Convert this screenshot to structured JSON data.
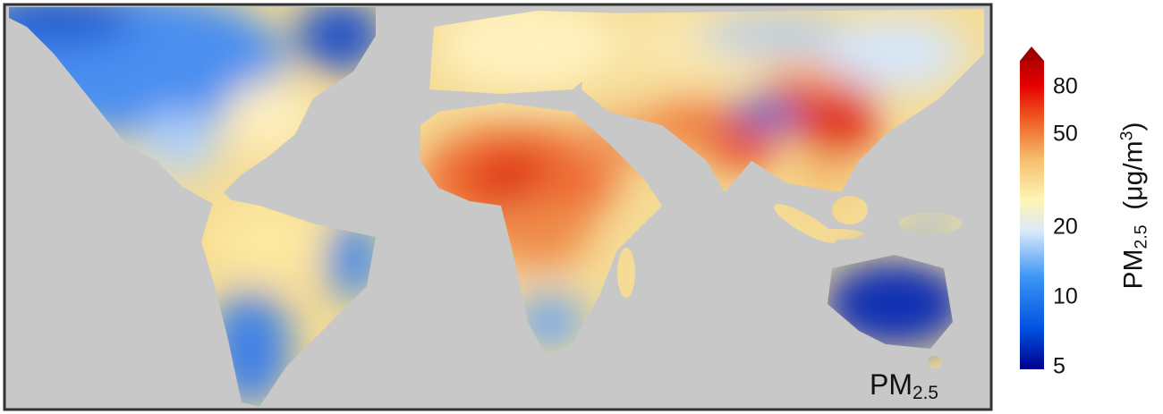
{
  "map": {
    "label": "PM",
    "label_sub": "2.5",
    "background_color": "#c8c8c8",
    "variable": "PM2.5 concentration"
  },
  "colorbar": {
    "title_main": "PM",
    "title_sub": "2.5",
    "title_units": "(μg/m",
    "title_units_sup": "3",
    "title_close": ")",
    "scale": "log",
    "range": [
      5,
      80
    ],
    "extend": "max",
    "ticks": [
      80,
      50,
      20,
      10,
      5
    ],
    "colors": [
      "#00008b",
      "#0050e0",
      "#3c96f5",
      "#c8e1fa",
      "#fff5b4",
      "#f5be6e",
      "#f06428",
      "#e60000",
      "#a00000"
    ]
  }
}
